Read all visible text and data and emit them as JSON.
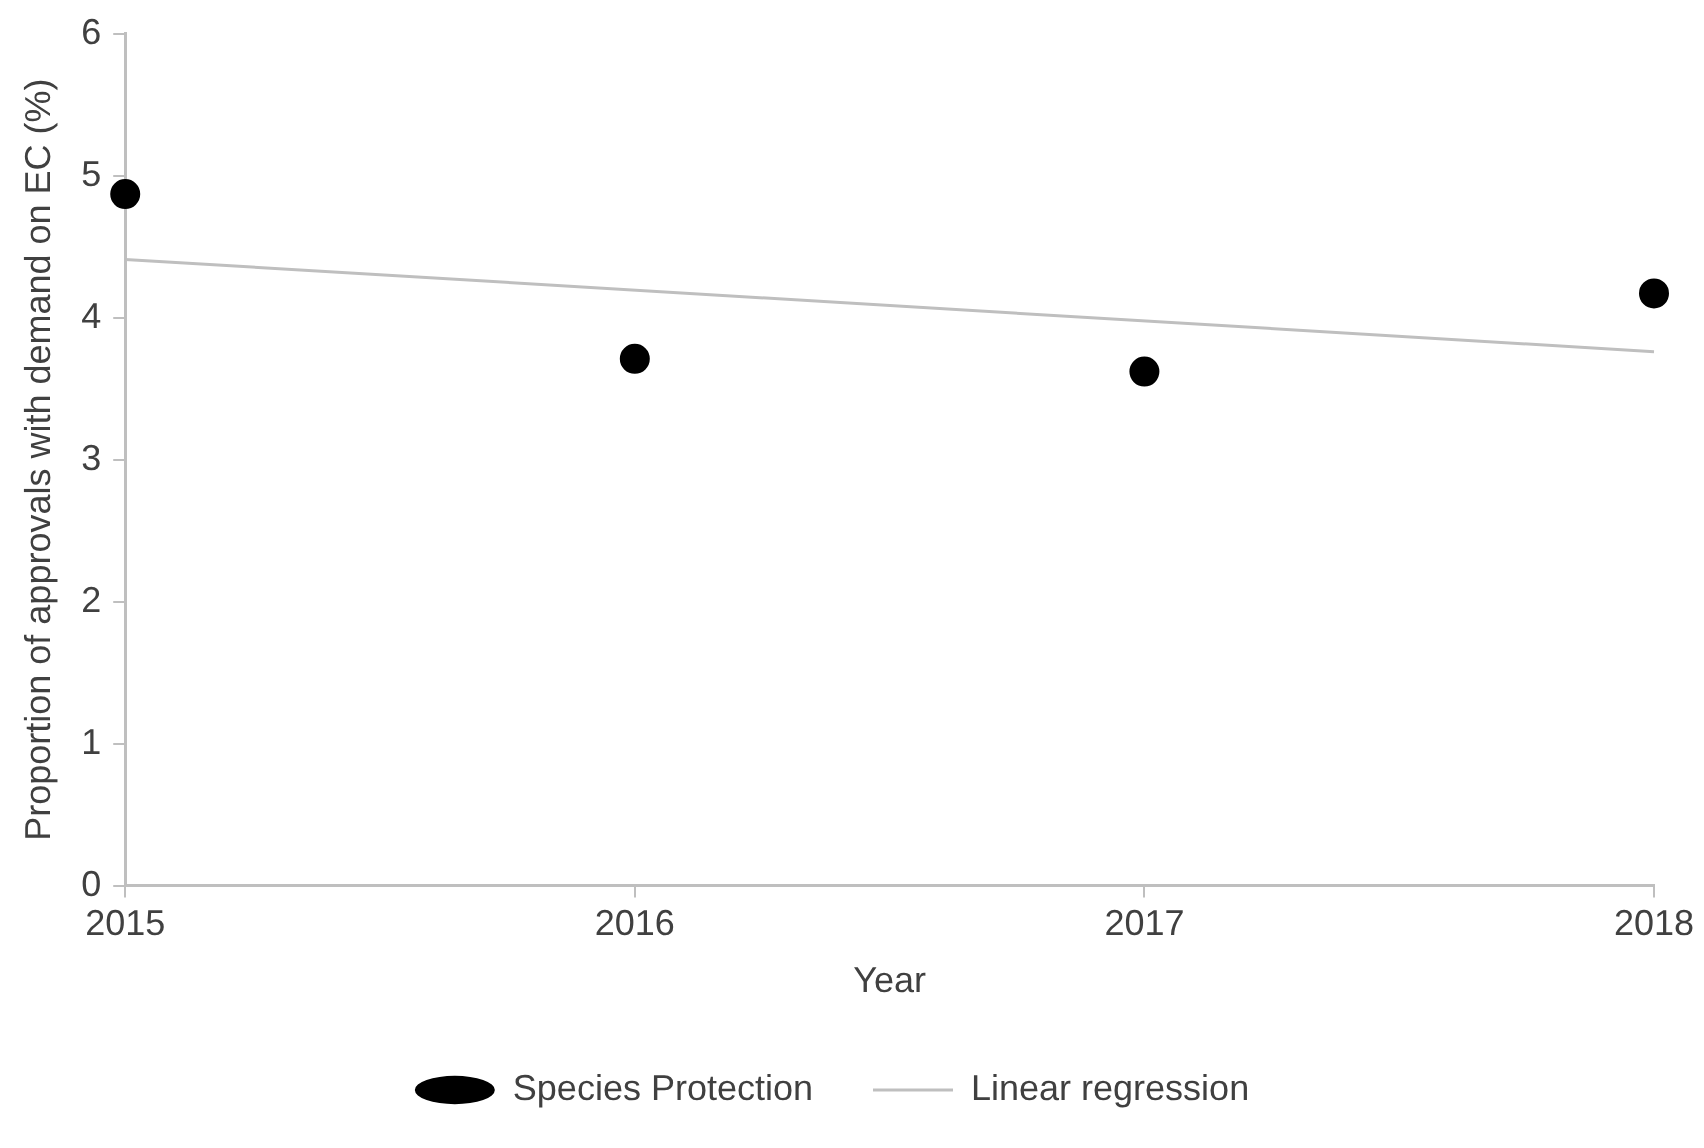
{
  "chart_data": {
    "type": "scatter",
    "xlabel": "Year",
    "ylabel": "Proportion of approvals with demand on EC (%)",
    "xlim": [
      2015,
      2018
    ],
    "xticks": [
      2015,
      2016,
      2017,
      2018
    ],
    "ylim": [
      0,
      6
    ],
    "yticks": [
      0,
      1,
      2,
      3,
      4,
      5,
      6
    ],
    "grid": false,
    "legend": "bottom",
    "series": [
      {
        "name": "Species Protection",
        "marker": "circle",
        "color": "#000000",
        "x": [
          2015,
          2016,
          2017,
          2018
        ],
        "values": [
          4.87,
          3.71,
          3.62,
          4.17
        ]
      },
      {
        "name": "Linear regression",
        "type": "line",
        "marker": "none",
        "color": "#bfbfbf",
        "x": [
          2015,
          2018
        ],
        "values": [
          4.41,
          3.76
        ]
      }
    ]
  }
}
